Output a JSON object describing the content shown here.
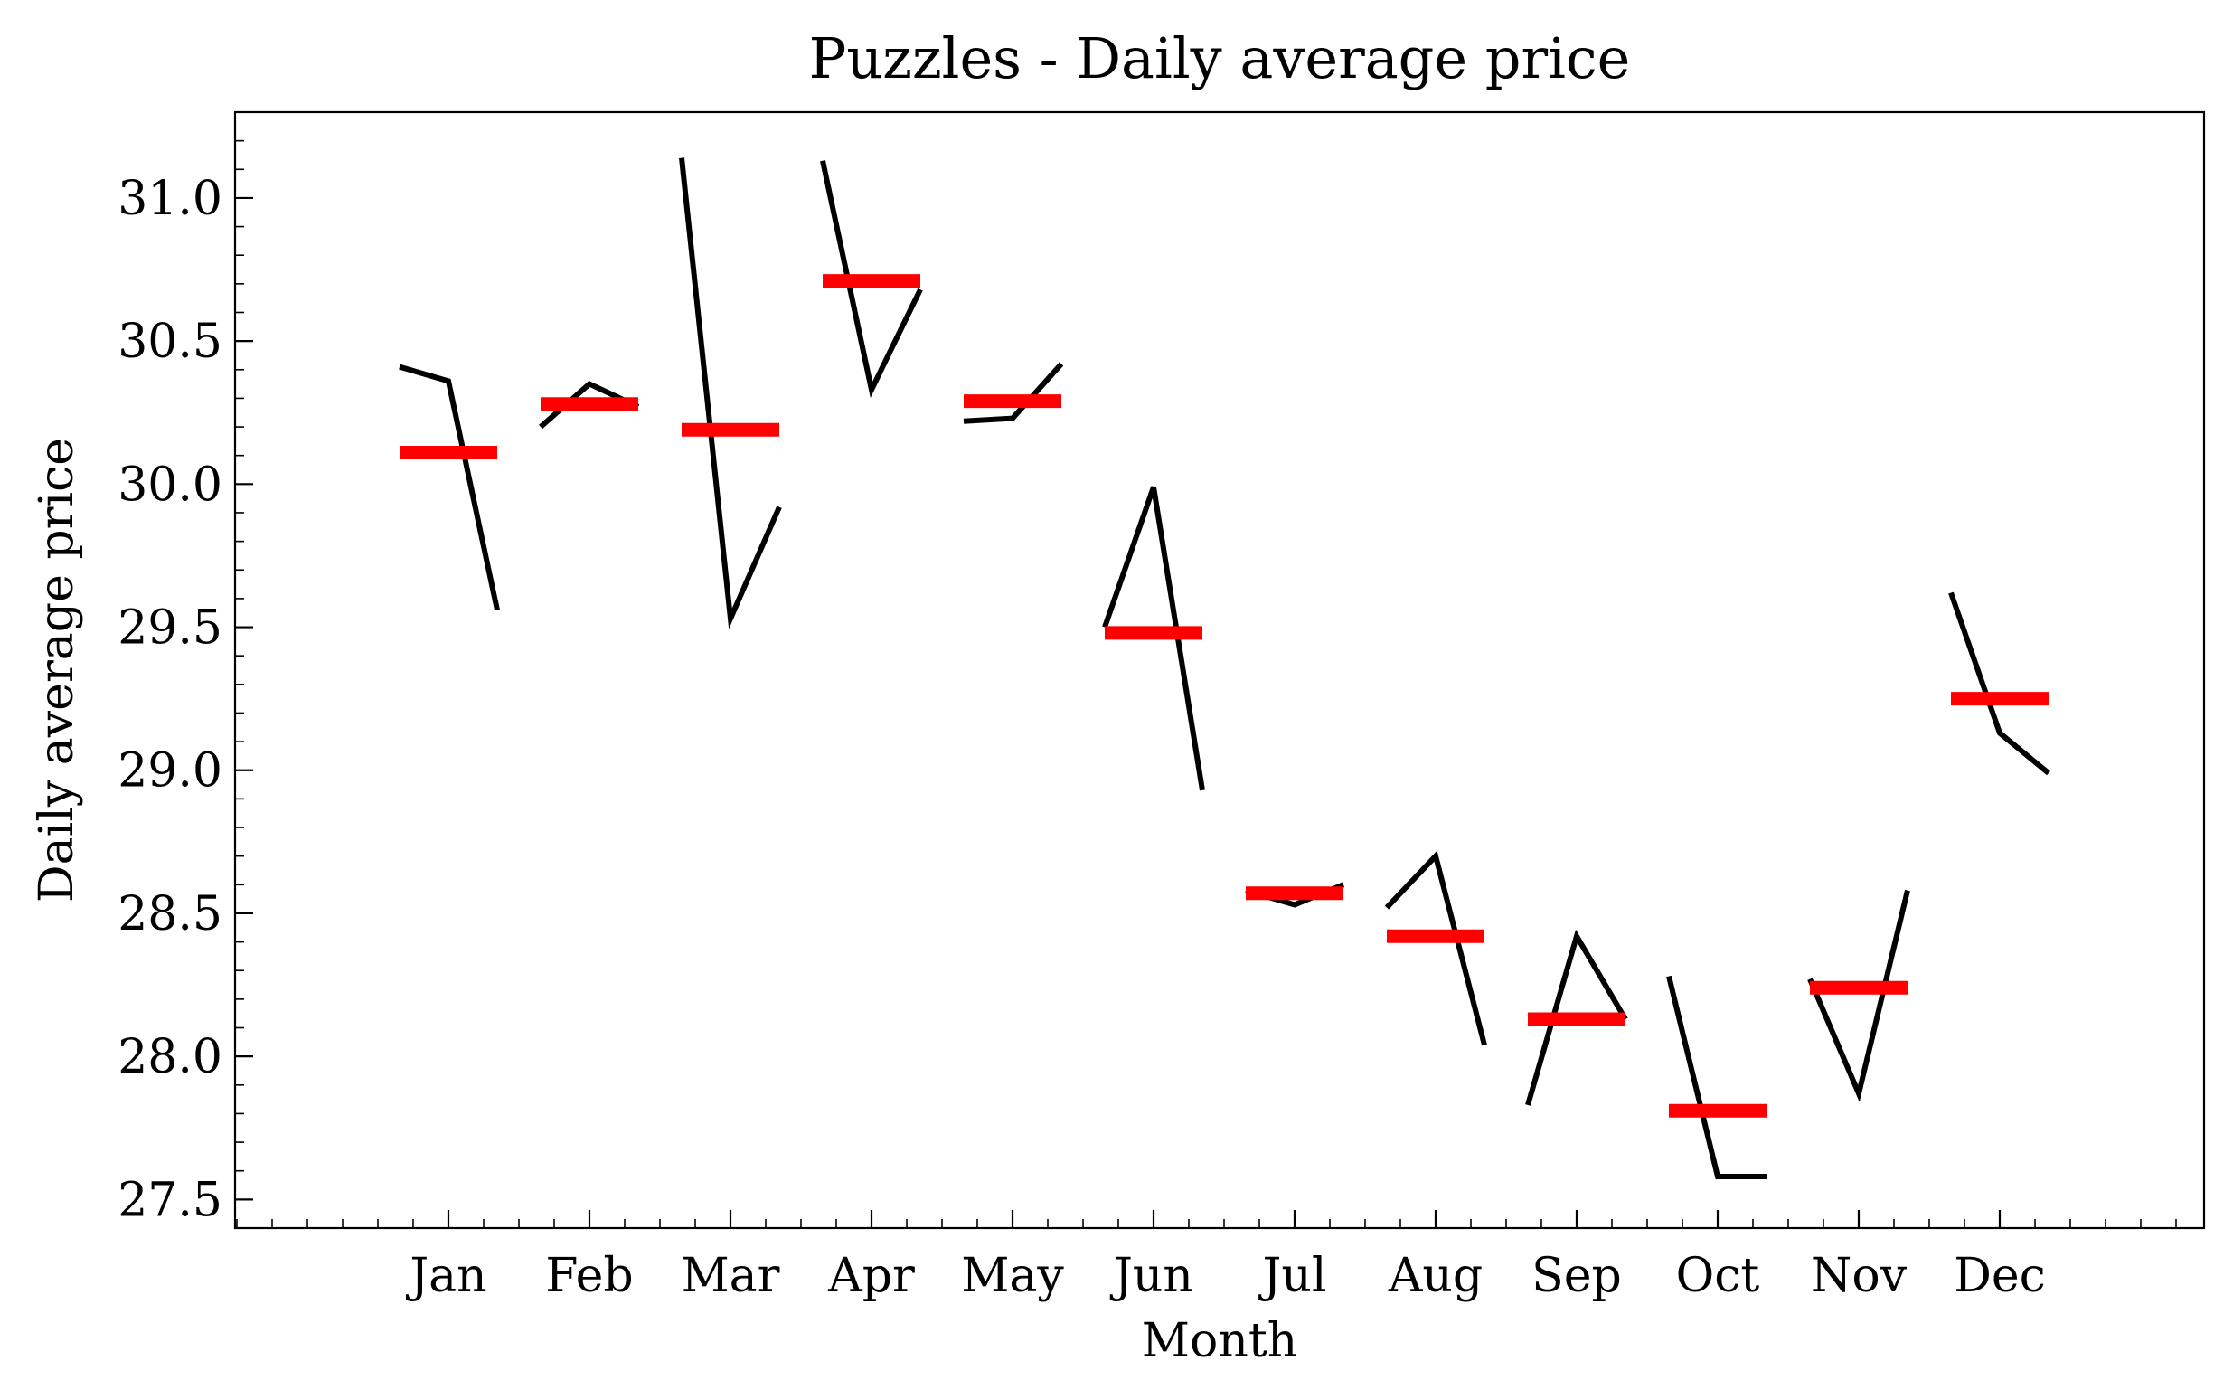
{
  "chart_data": {
    "type": "line",
    "title": "Puzzles - Daily average price",
    "xlabel": "Month",
    "ylabel": "Daily average price",
    "categories": [
      "Jan",
      "Feb",
      "Mar",
      "Apr",
      "May",
      "Jun",
      "Jul",
      "Aug",
      "Sep",
      "Oct",
      "Nov",
      "Dec"
    ],
    "ylim": [
      27.4,
      31.3
    ],
    "yticks": [
      "27.5",
      "28.0",
      "28.5",
      "29.0",
      "29.5",
      "30.0",
      "30.5",
      "31.0"
    ],
    "series": [
      {
        "color": "#000000",
        "segments": [
          [
            30.41,
            30.36,
            29.56
          ],
          [
            30.2,
            30.35,
            30.27
          ],
          [
            31.14,
            29.53,
            29.92
          ],
          [
            31.13,
            30.33,
            30.68
          ],
          [
            30.22,
            30.23,
            30.42
          ],
          [
            29.5,
            29.99,
            28.93
          ],
          [
            28.58,
            28.53,
            28.6
          ],
          [
            28.52,
            28.7,
            28.04
          ],
          [
            27.83,
            28.42,
            28.13
          ],
          [
            28.28,
            27.58,
            27.58
          ],
          [
            28.27,
            27.87,
            28.58
          ],
          [
            29.62,
            29.13,
            28.99
          ]
        ]
      },
      {
        "color": "#ff0000",
        "values": [
          30.11,
          30.28,
          30.19,
          30.71,
          30.29,
          29.48,
          28.57,
          28.42,
          28.13,
          27.81,
          28.24,
          29.25
        ]
      }
    ],
    "grid": false,
    "legend": "none"
  }
}
